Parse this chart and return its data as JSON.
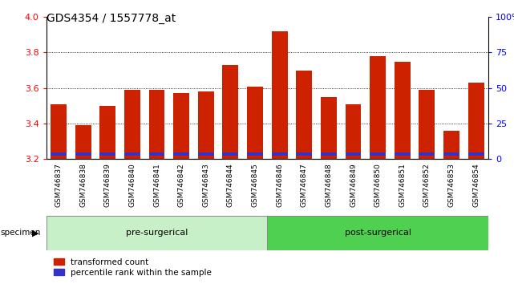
{
  "title": "GDS4354 / 1557778_at",
  "samples": [
    "GSM746837",
    "GSM746838",
    "GSM746839",
    "GSM746840",
    "GSM746841",
    "GSM746842",
    "GSM746843",
    "GSM746844",
    "GSM746845",
    "GSM746846",
    "GSM746847",
    "GSM746848",
    "GSM746849",
    "GSM746850",
    "GSM746851",
    "GSM746852",
    "GSM746853",
    "GSM746854"
  ],
  "transformed_count": [
    3.51,
    3.39,
    3.5,
    3.59,
    3.59,
    3.57,
    3.58,
    3.73,
    3.61,
    3.92,
    3.7,
    3.55,
    3.51,
    3.78,
    3.75,
    3.59,
    3.36,
    3.63
  ],
  "blue_bar_height": 0.018,
  "blue_bar_base": 3.218,
  "ymin": 3.2,
  "ymax": 4.0,
  "yticks": [
    3.2,
    3.4,
    3.6,
    3.8,
    4.0
  ],
  "right_yticks": [
    0,
    25,
    50,
    75,
    100
  ],
  "right_yticklabels": [
    "0",
    "25",
    "50",
    "75",
    "100%"
  ],
  "bar_color": "#cc2200",
  "blue_color": "#3333cc",
  "bar_width": 0.65,
  "bg_color": "#ffffff",
  "legend_items": [
    {
      "label": "transformed count",
      "color": "#cc2200"
    },
    {
      "label": "percentile rank within the sample",
      "color": "#3333cc"
    }
  ],
  "group_label_pre": "pre-surgerical",
  "group_label_post": "post-surgerical",
  "group_pre_color": "#c8f0c8",
  "group_post_color": "#50d050",
  "ticklabel_bg": "#d0d0d0",
  "pre_count": 9,
  "post_count": 9
}
